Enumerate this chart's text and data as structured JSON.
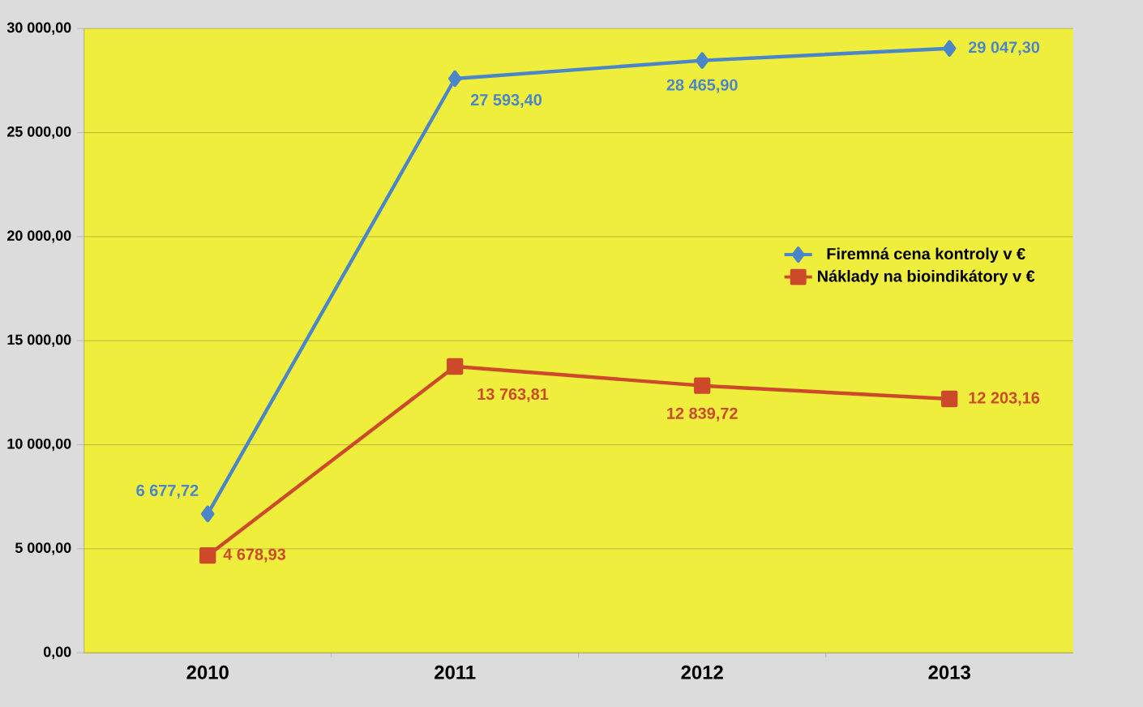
{
  "chart_data": {
    "type": "line",
    "categories": [
      "2010",
      "2011",
      "2012",
      "2013"
    ],
    "series": [
      {
        "name": "Firemná cena kontroly v €",
        "color": "#4a86c8",
        "marker": "diamond",
        "values": [
          6677.72,
          27593.4,
          28465.9,
          29047.3
        ],
        "value_labels": [
          "6 677,72",
          "27 593,40",
          "28 465,90",
          "29 047,30"
        ]
      },
      {
        "name": "Náklady na bioindikátory v €",
        "color": "#cc4a2a",
        "marker": "square",
        "values": [
          4678.93,
          13763.81,
          12839.72,
          12203.16
        ],
        "value_labels": [
          "4 678,93",
          "13 763,81",
          "12 839,72",
          "12 203,16"
        ]
      }
    ],
    "ylim": [
      0,
      30000
    ],
    "yticks": [
      {
        "value": 0,
        "label": "0,00"
      },
      {
        "value": 5000,
        "label": "5 000,00"
      },
      {
        "value": 10000,
        "label": "10 000,00"
      },
      {
        "value": 15000,
        "label": "15 000,00"
      },
      {
        "value": 20000,
        "label": "20 000,00"
      },
      {
        "value": 25000,
        "label": "25 000,00"
      },
      {
        "value": 30000,
        "label": "30 000,00"
      }
    ],
    "grid": "y",
    "legend": "right",
    "line_style": "solid"
  }
}
